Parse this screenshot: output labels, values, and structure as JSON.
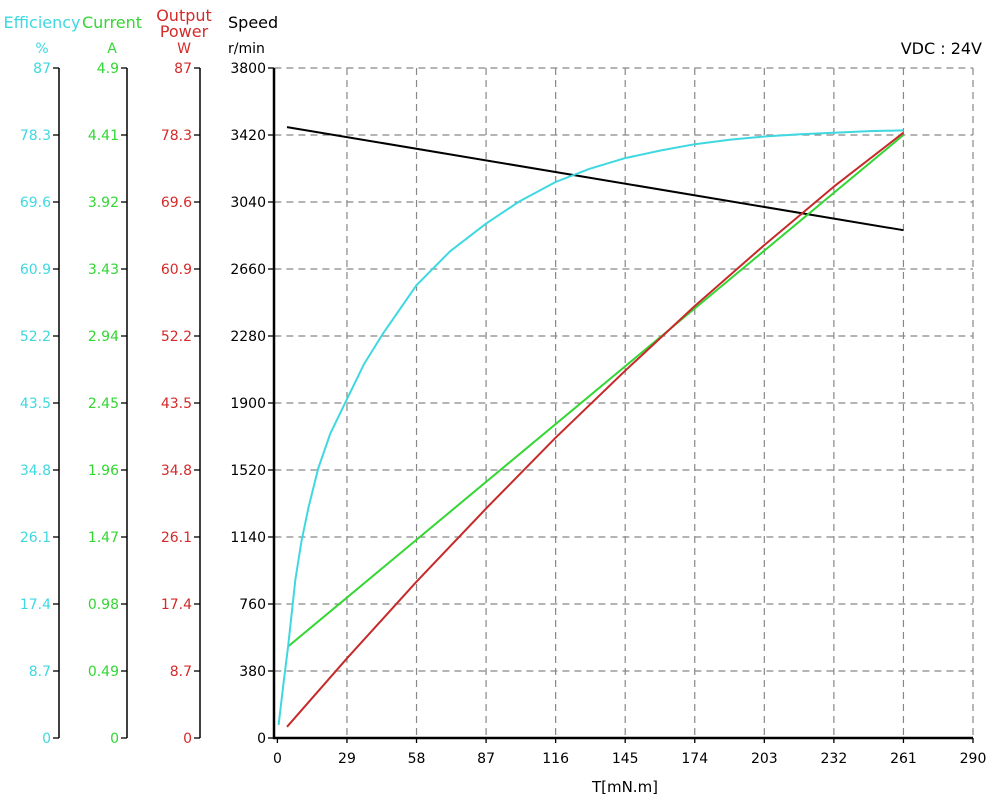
{
  "chart_data": {
    "type": "line",
    "annotation": "VDC : 24V",
    "xlabel": "T[mN.m]",
    "xlim": [
      0,
      290
    ],
    "xticks": [
      "0",
      "29",
      "58",
      "87",
      "116",
      "145",
      "174",
      "203",
      "232",
      "261",
      "290"
    ],
    "grid": true,
    "axes": [
      {
        "id": "efficiency",
        "title": [
          "Efficiency"
        ],
        "unit": "%",
        "color": "#3fd8e0",
        "range": [
          0,
          87
        ],
        "ticks": [
          "0",
          "8.7",
          "17.4",
          "26.1",
          "34.8",
          "43.5",
          "52.2",
          "60.9",
          "69.6",
          "78.3",
          "87"
        ]
      },
      {
        "id": "current",
        "title": [
          "Current"
        ],
        "unit": "A",
        "color": "#33d633",
        "range": [
          0,
          4.9
        ],
        "ticks": [
          "0",
          "0.49",
          "0.98",
          "1.47",
          "1.96",
          "2.45",
          "2.94",
          "3.43",
          "3.92",
          "4.41",
          "4.9"
        ]
      },
      {
        "id": "power",
        "title": [
          "Output",
          "Power"
        ],
        "unit": "W",
        "color": "#d42a2a",
        "range": [
          0,
          87
        ],
        "ticks": [
          "0",
          "8.7",
          "17.4",
          "26.1",
          "34.8",
          "43.5",
          "52.2",
          "60.9",
          "69.6",
          "78.3",
          "87"
        ]
      },
      {
        "id": "speed",
        "title": [
          "Speed"
        ],
        "unit": "r/min",
        "color": "#000000",
        "range": [
          0,
          3800
        ],
        "ticks": [
          "0",
          "380",
          "760",
          "1140",
          "1520",
          "1900",
          "2280",
          "2660",
          "3040",
          "3420",
          "3800"
        ]
      }
    ],
    "series": [
      {
        "name": "Speed",
        "axis": "speed",
        "color": "#000000",
        "points": [
          [
            4,
            3465
          ],
          [
            261,
            2880
          ]
        ]
      },
      {
        "name": "Current",
        "axis": "current",
        "color": "#33d633",
        "points": [
          [
            4.5,
            0.67
          ],
          [
            261,
            4.41
          ]
        ]
      },
      {
        "name": "Output Power",
        "axis": "power",
        "color": "#c62a2a",
        "points": [
          [
            4,
            1.45
          ],
          [
            29,
            10.35
          ],
          [
            58,
            20.3
          ],
          [
            87,
            29.8
          ],
          [
            116,
            39.0
          ],
          [
            145,
            47.7
          ],
          [
            174,
            56.1
          ],
          [
            203,
            64.0
          ],
          [
            232,
            71.6
          ],
          [
            261,
            78.6
          ]
        ]
      },
      {
        "name": "Efficiency",
        "axis": "efficiency",
        "color": "#3fd8e0",
        "points": [
          [
            0.5,
            1.7
          ],
          [
            2.5,
            7
          ],
          [
            4.5,
            12
          ],
          [
            7.5,
            20.6
          ],
          [
            10,
            25.5
          ],
          [
            13,
            30
          ],
          [
            17,
            35
          ],
          [
            22,
            39.5
          ],
          [
            29,
            44
          ],
          [
            36,
            48.5
          ],
          [
            44,
            52.5
          ],
          [
            58,
            58.8
          ],
          [
            72,
            63.2
          ],
          [
            87,
            66.8
          ],
          [
            101,
            69.7
          ],
          [
            116,
            72.2
          ],
          [
            130,
            73.9
          ],
          [
            145,
            75.3
          ],
          [
            160,
            76.3
          ],
          [
            174,
            77.1
          ],
          [
            189,
            77.7
          ],
          [
            203,
            78.1
          ],
          [
            218,
            78.4
          ],
          [
            232,
            78.6
          ],
          [
            247,
            78.8
          ],
          [
            261,
            78.9
          ]
        ]
      }
    ]
  }
}
